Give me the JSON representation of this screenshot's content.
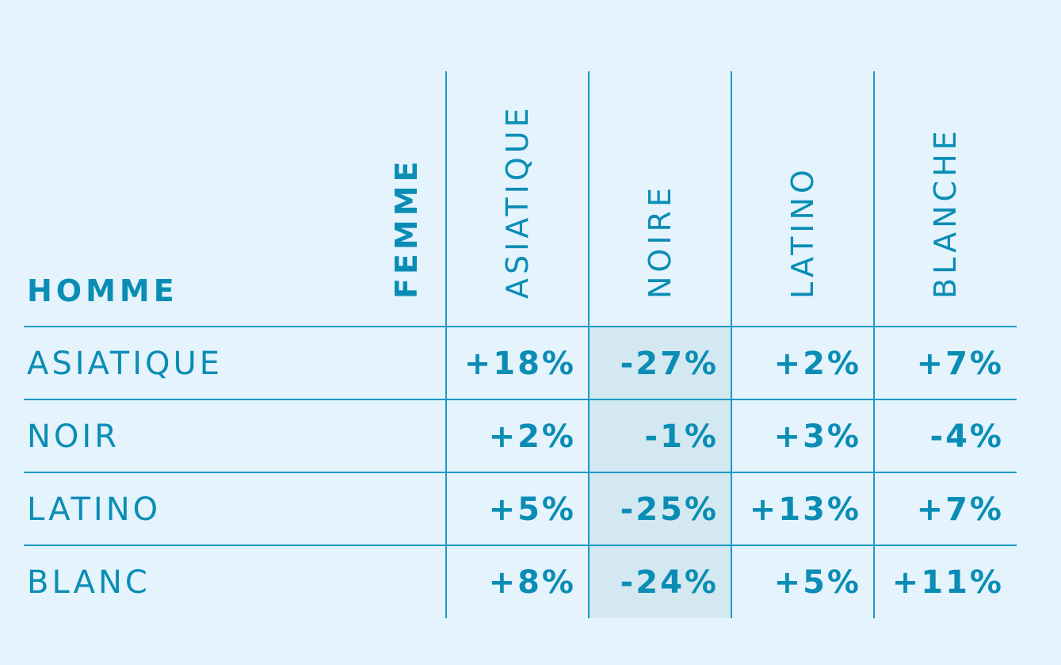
{
  "table": {
    "row_title": "HOMME",
    "col_title": "FEMME",
    "columns": [
      "ASIATIQUE",
      "NOIRE",
      "LATINO",
      "BLANCHE"
    ],
    "rows": [
      {
        "label": "ASIATIQUE",
        "cells": [
          "+18%",
          "-27%",
          "+2%",
          "+7%"
        ]
      },
      {
        "label": "NOIR",
        "cells": [
          "+2%",
          "-1%",
          "+3%",
          "-4%"
        ]
      },
      {
        "label": "LATINO",
        "cells": [
          "+5%",
          "-25%",
          "+13%",
          "+7%"
        ]
      },
      {
        "label": "BLANC",
        "cells": [
          "+8%",
          "-24%",
          "+5%",
          "+11%"
        ]
      }
    ]
  }
}
